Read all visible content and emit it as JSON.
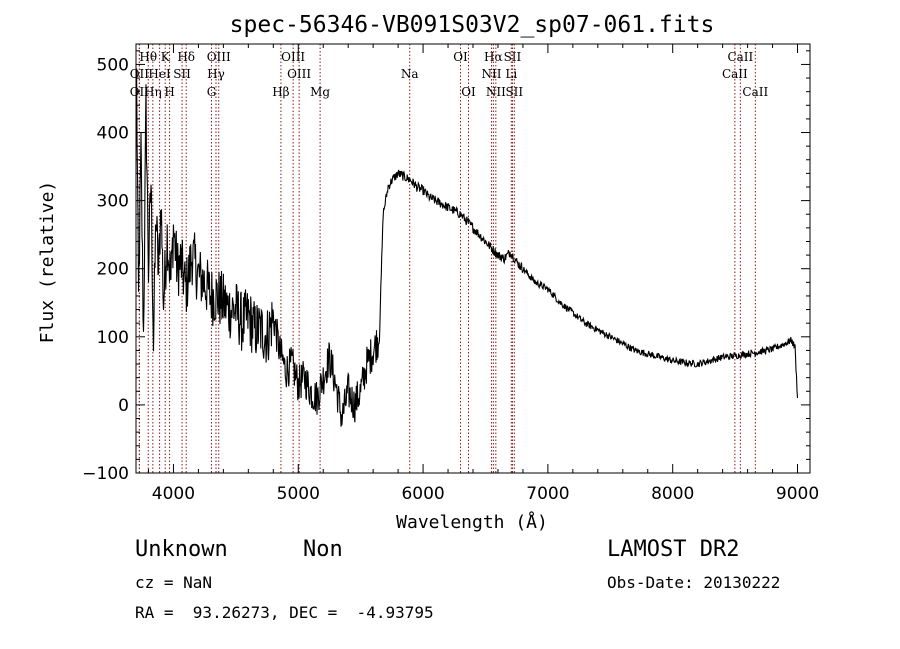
{
  "chart_data": {
    "type": "line",
    "title": "spec-56346-VB091S03V2_sp07-061.fits",
    "xlabel": "Wavelength (Å)",
    "ylabel": "Flux (relative)",
    "xlim": [
      3700,
      9100
    ],
    "ylim": [
      -100,
      530
    ],
    "xticks": [
      4000,
      5000,
      6000,
      7000,
      8000,
      9000
    ],
    "xtick_labels": [
      "4000",
      "5000",
      "6000",
      "7000",
      "8000",
      "9000"
    ],
    "yticks": [
      -100,
      0,
      100,
      200,
      300,
      400,
      500
    ],
    "ytick_labels": [
      "−100",
      "0",
      "100",
      "200",
      "300",
      "400",
      "500"
    ],
    "grid": false,
    "legend": "none",
    "line_color": "#000000",
    "marker_color": "#8b1a1a",
    "series": [
      {
        "x": [
          3705,
          3720,
          3740,
          3760,
          3780,
          3800,
          3820,
          3840,
          3860,
          3880,
          3900,
          3920,
          3950,
          3980,
          4000,
          4030,
          4060,
          4100,
          4150,
          4200,
          4250,
          4300,
          4350,
          4400,
          4450,
          4500,
          4550,
          4600,
          4650,
          4700,
          4750,
          4800,
          4850,
          4900,
          4950,
          5000,
          5050,
          5100,
          5150,
          5200,
          5250,
          5300,
          5350,
          5400,
          5450,
          5500,
          5550,
          5600,
          5650,
          5680,
          5700,
          5720,
          5750,
          5800,
          5850,
          5900,
          5950,
          6000,
          6050,
          6100,
          6150,
          6200,
          6250,
          6300,
          6350,
          6400,
          6450,
          6500,
          6550,
          6600,
          6650,
          6700,
          6750,
          6800,
          6850,
          6900,
          6950,
          7000,
          7100,
          7200,
          7300,
          7400,
          7500,
          7600,
          7700,
          7800,
          7900,
          8000,
          8100,
          8200,
          8300,
          8400,
          8500,
          8600,
          8700,
          8800,
          8900,
          8950,
          8980,
          9000
        ],
        "y": [
          480,
          150,
          370,
          100,
          440,
          200,
          330,
          90,
          280,
          190,
          300,
          150,
          250,
          180,
          260,
          200,
          210,
          170,
          220,
          190,
          180,
          160,
          160,
          150,
          140,
          140,
          120,
          130,
          110,
          110,
          100,
          130,
          80,
          50,
          60,
          30,
          40,
          20,
          10,
          40,
          70,
          30,
          -20,
          20,
          0,
          20,
          60,
          80,
          100,
          280,
          300,
          320,
          330,
          340,
          335,
          330,
          320,
          315,
          305,
          300,
          295,
          290,
          285,
          280,
          270,
          260,
          250,
          240,
          230,
          220,
          215,
          225,
          210,
          200,
          190,
          180,
          175,
          170,
          150,
          135,
          120,
          110,
          100,
          90,
          80,
          75,
          70,
          65,
          62,
          60,
          65,
          70,
          72,
          75,
          78,
          82,
          90,
          95,
          85,
          10
        ]
      }
    ],
    "line_markers": [
      {
        "label": "Hθ",
        "x": 3798,
        "row": 1
      },
      {
        "label": "OII",
        "x": 3727,
        "row": 2
      },
      {
        "label": "OII",
        "x": 3727,
        "row": 3
      },
      {
        "label": "Hη",
        "x": 3835,
        "row": 3
      },
      {
        "label": "HeI",
        "x": 3889,
        "row": 2
      },
      {
        "label": "K",
        "x": 3934,
        "row": 1
      },
      {
        "label": "H",
        "x": 3969,
        "row": 3
      },
      {
        "label": "SII",
        "x": 4069,
        "row": 2
      },
      {
        "label": "Hδ",
        "x": 4102,
        "row": 1
      },
      {
        "label": "OIII",
        "x": 4363,
        "row": 1
      },
      {
        "label": "Hγ",
        "x": 4341,
        "row": 2
      },
      {
        "label": "G",
        "x": 4305,
        "row": 3
      },
      {
        "label": "Hβ",
        "x": 4861,
        "row": 3
      },
      {
        "label": "OIII",
        "x": 4959,
        "row": 1
      },
      {
        "label": "OIII",
        "x": 5007,
        "row": 2
      },
      {
        "label": "Mg",
        "x": 5175,
        "row": 3
      },
      {
        "label": "Na",
        "x": 5893,
        "row": 2
      },
      {
        "label": "OI",
        "x": 6300,
        "row": 1
      },
      {
        "label": "OI",
        "x": 6364,
        "row": 3
      },
      {
        "label": "Hα",
        "x": 6563,
        "row": 1
      },
      {
        "label": "NII",
        "x": 6548,
        "row": 2
      },
      {
        "label": "NII",
        "x": 6583,
        "row": 3
      },
      {
        "label": "SII",
        "x": 6716,
        "row": 1
      },
      {
        "label": "Li",
        "x": 6707,
        "row": 2
      },
      {
        "label": "SII",
        "x": 6731,
        "row": 3
      },
      {
        "label": "CaII",
        "x": 8542,
        "row": 1
      },
      {
        "label": "CaII",
        "x": 8498,
        "row": 2
      },
      {
        "label": "CaII",
        "x": 8662,
        "row": 3
      }
    ]
  },
  "info": {
    "class": "Unknown",
    "subclass": "Non",
    "survey": "LAMOST DR2",
    "cz": "cz = NaN",
    "obs_date": "Obs-Date: 20130222",
    "coords": "RA =  93.26273, DEC =  -4.93795"
  }
}
